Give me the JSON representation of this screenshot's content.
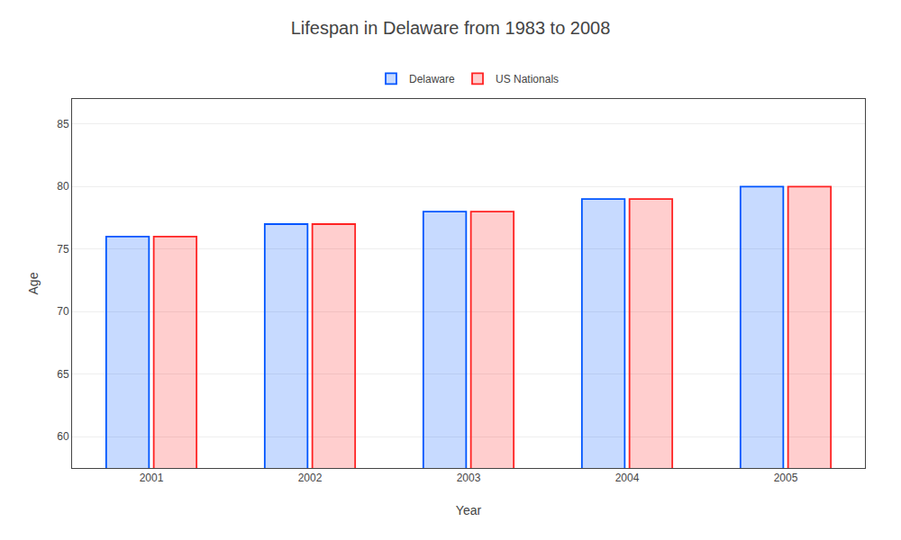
{
  "chart_data": {
    "type": "bar",
    "title": "Lifespan in Delaware from 1983 to 2008",
    "xlabel": "Year",
    "ylabel": "Age",
    "categories": [
      2001,
      2002,
      2003,
      2004,
      2005
    ],
    "series": [
      {
        "name": "Delaware",
        "color": "#0055ff",
        "values": [
          76,
          77,
          78,
          79,
          80
        ]
      },
      {
        "name": "US Nationals",
        "color": "#ff2222",
        "values": [
          76,
          77,
          78,
          79,
          80
        ]
      }
    ],
    "ylim": [
      57.5,
      87
    ],
    "yticks": [
      60,
      65,
      70,
      75,
      80,
      85
    ],
    "grid": true,
    "legend": "top"
  }
}
